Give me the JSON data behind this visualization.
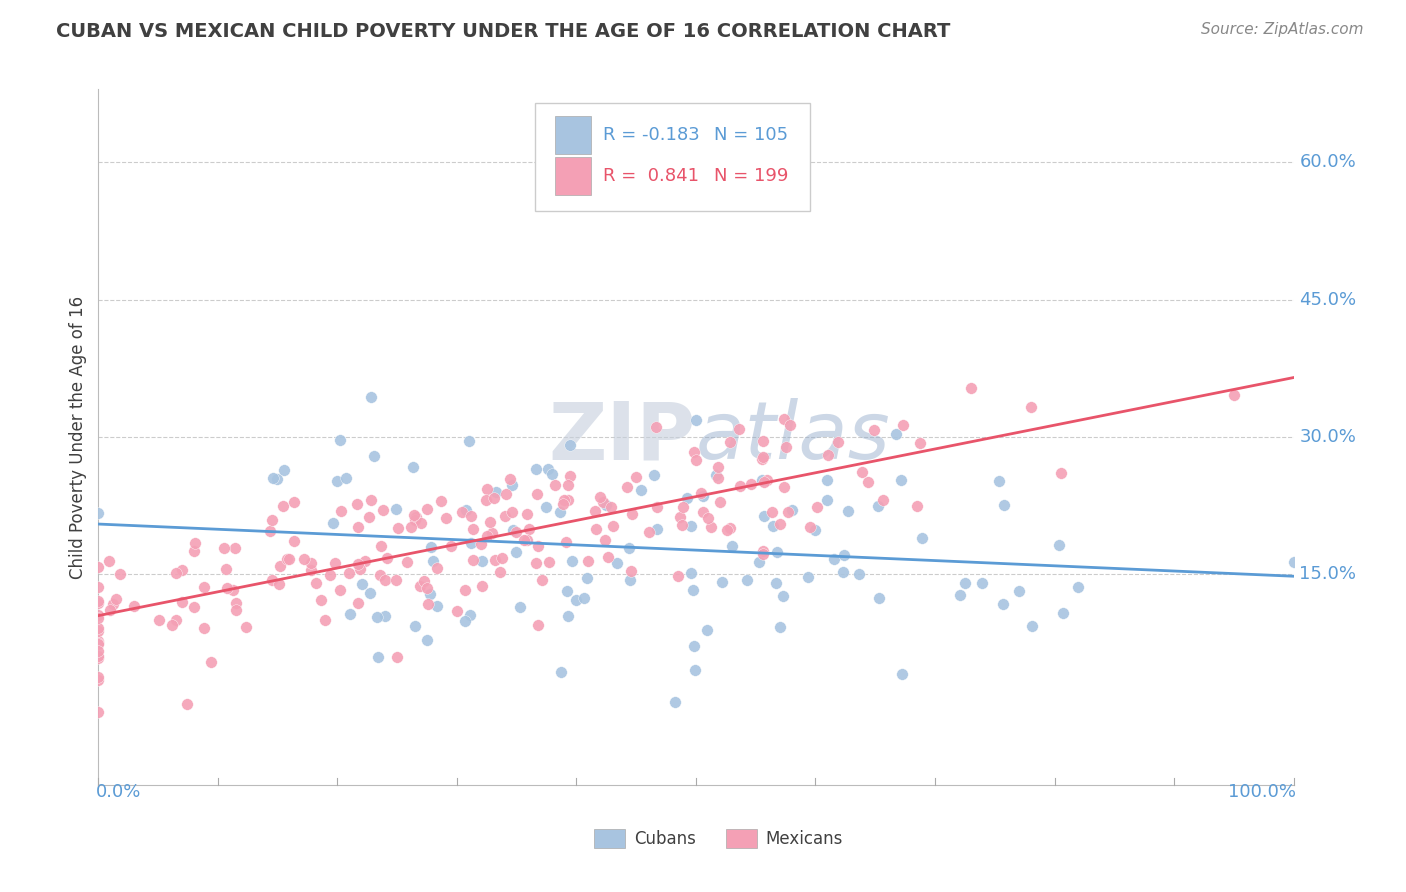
{
  "title": "CUBAN VS MEXICAN CHILD POVERTY UNDER THE AGE OF 16 CORRELATION CHART",
  "source": "Source: ZipAtlas.com",
  "ylabel": "Child Poverty Under the Age of 16",
  "xlim": [
    0.0,
    1.0
  ],
  "ylim": [
    -0.08,
    0.68
  ],
  "yticks": [
    0.0,
    0.15,
    0.3,
    0.45,
    0.6
  ],
  "ytick_labels": [
    "",
    "15.0%",
    "30.0%",
    "45.0%",
    "60.0%"
  ],
  "xtick_labels": [
    "0.0%",
    "100.0%"
  ],
  "cuban_color": "#a8c4e0",
  "mexican_color": "#f4a0b5",
  "cuban_line_color": "#5b9bd5",
  "mexican_line_color": "#e8546a",
  "watermark_color": "#cdd8ea",
  "background_color": "#ffffff",
  "grid_color": "#cccccc",
  "title_color": "#404040",
  "cuban_R": -0.183,
  "cuban_N": 105,
  "mexican_R": 0.841,
  "mexican_N": 199,
  "cuban_line_y0": 0.205,
  "cuban_line_y1": 0.148,
  "mexican_line_y0": 0.105,
  "mexican_line_y1": 0.365
}
